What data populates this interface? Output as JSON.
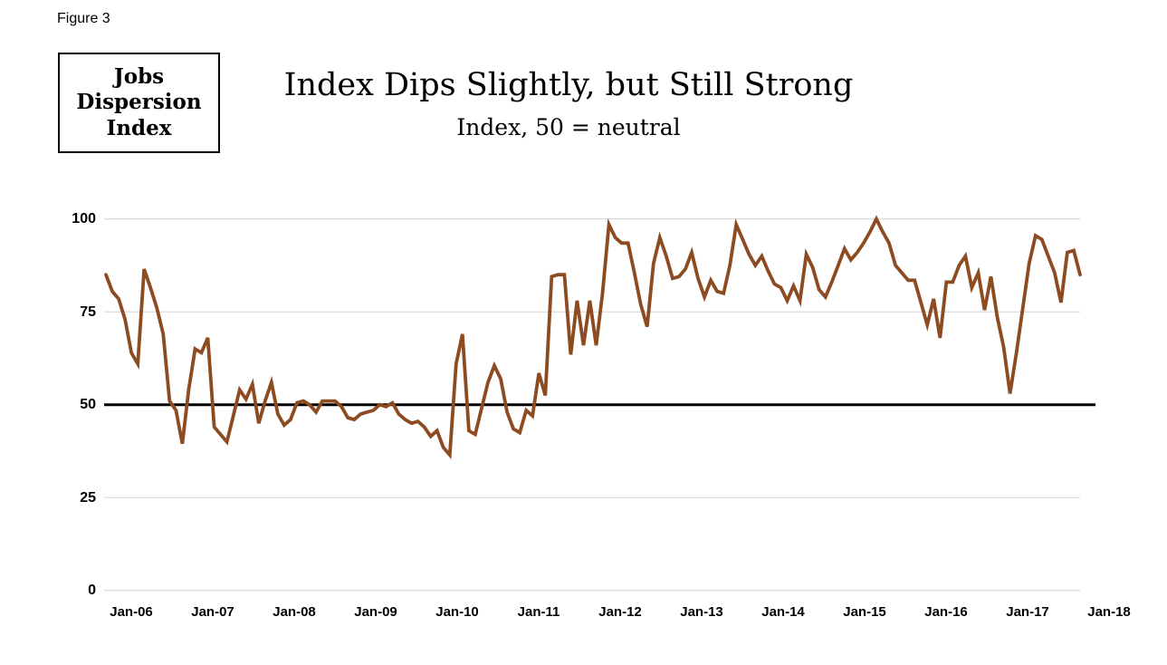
{
  "figure_label": "Figure 3",
  "index_box": {
    "lines": [
      "Jobs",
      "Dispersion",
      "Index"
    ]
  },
  "title": "Index Dips Slightly, but Still Strong",
  "subtitle": "Index, 50 = neutral",
  "colors": {
    "line": "#8C4B21",
    "reference_line": "#000000",
    "gridline": "#D6D6D6",
    "text": "#000000",
    "background": "#FFFFFF"
  },
  "chart_data": {
    "type": "line",
    "title": "Index Dips Slightly, but Still Strong",
    "subtitle": "Index, 50 = neutral",
    "series_name": "Jobs Dispersion Index",
    "frequency": "monthly",
    "ylim": [
      0,
      100
    ],
    "y_ticks": [
      100,
      75,
      50,
      25,
      0
    ],
    "gridline_values": [
      100,
      75,
      25,
      0
    ],
    "reference_line": {
      "value": 50
    },
    "legend": "none",
    "x_tick_labels": [
      "Jan-06",
      "Jan-07",
      "Jan-08",
      "Jan-09",
      "Jan-10",
      "Jan-11",
      "Jan-12",
      "Jan-13",
      "Jan-14",
      "Jan-15",
      "Jan-16",
      "Jan-17",
      "Jan-18"
    ],
    "values": [
      85,
      80.5,
      78.5,
      73,
      64,
      61,
      86.5,
      81.5,
      76,
      69,
      51,
      48.5,
      39.5,
      54,
      65,
      64,
      68,
      44,
      42,
      40,
      47,
      54,
      51.5,
      55.5,
      45,
      51,
      56,
      47.5,
      44.5,
      46,
      50.5,
      51,
      50,
      48,
      51,
      51,
      51,
      49.5,
      46.5,
      46,
      47.5,
      48,
      48.5,
      50,
      49.5,
      50.5,
      47.5,
      46,
      45,
      45.5,
      44,
      41.5,
      43,
      38.5,
      36.5,
      61,
      69,
      43,
      42,
      49,
      56,
      60.5,
      57,
      48,
      43.5,
      42.5,
      48.5,
      47,
      58.5,
      52.5,
      84.5,
      85,
      85,
      63.5,
      78,
      66,
      78,
      66,
      80,
      98.5,
      95,
      93.5,
      93.5,
      85.5,
      77,
      71,
      88,
      95,
      90,
      84,
      84.5,
      86.5,
      91,
      84,
      79,
      83.5,
      80.5,
      80,
      87.5,
      98.5,
      94.5,
      90.5,
      87.5,
      90,
      86,
      82.5,
      81.5,
      78,
      82,
      78,
      90.5,
      87,
      81,
      79,
      83,
      87.5,
      92,
      89,
      91,
      93.5,
      96.5,
      100,
      96.5,
      93.5,
      87.5,
      85.5,
      83.5,
      83.5,
      77.5,
      71.5,
      78.5,
      68,
      83,
      83,
      87.5,
      90,
      81.5,
      85.5,
      75.5,
      84.5,
      73.5,
      65.5,
      53,
      64,
      76,
      88,
      95.5,
      94.5,
      90,
      85.5,
      77.5,
      91,
      91.5,
      85
    ]
  }
}
